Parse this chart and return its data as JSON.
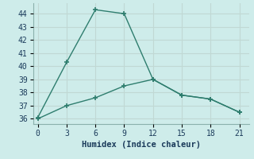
{
  "line1_x": [
    0,
    3,
    6,
    9,
    12,
    15,
    18,
    21
  ],
  "line1_y": [
    36.1,
    40.3,
    44.3,
    44.0,
    39.0,
    37.8,
    37.5,
    36.5
  ],
  "line2_x": [
    0,
    3,
    6,
    9,
    12,
    15,
    18,
    21
  ],
  "line2_y": [
    36.0,
    37.0,
    37.6,
    38.5,
    39.0,
    37.8,
    37.5,
    36.5
  ],
  "line_color": "#2e7d6e",
  "bg_color": "#ceecea",
  "grid_color": "#c0d8d4",
  "xlabel": "Humidex (Indice chaleur)",
  "ylabel_ticks": [
    36,
    37,
    38,
    39,
    40,
    41,
    42,
    43,
    44
  ],
  "xticks": [
    0,
    3,
    6,
    9,
    12,
    15,
    18,
    21
  ],
  "xlim": [
    -0.5,
    22
  ],
  "ylim": [
    35.6,
    44.8
  ],
  "xlabel_fontsize": 7.5,
  "tick_fontsize": 7,
  "marker": "+",
  "markersize": 5,
  "linewidth": 1.0
}
